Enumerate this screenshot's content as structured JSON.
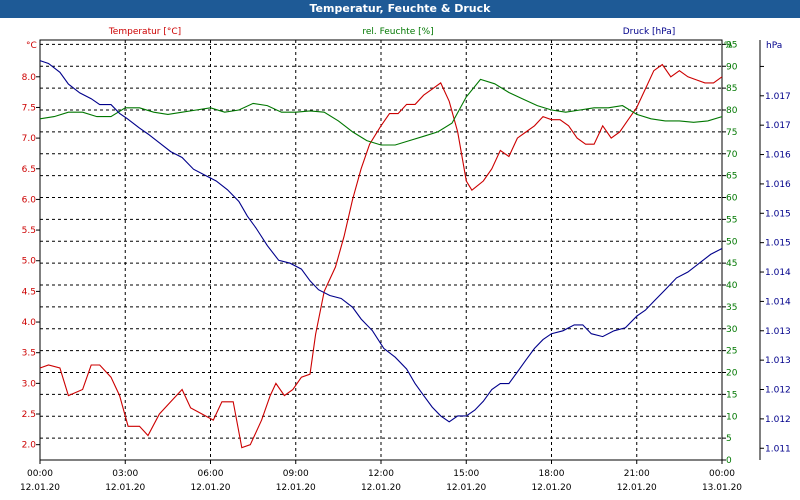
{
  "chart_data": {
    "type": "line",
    "title": "Temperatur, Feuchte & Druck",
    "axes": {
      "left": {
        "label": "Temperatur [°C]",
        "unit": "°C",
        "min": 1.75,
        "max": 8.6,
        "ticks": [
          2.0,
          2.5,
          3.0,
          3.5,
          4.0,
          4.5,
          5.0,
          5.5,
          6.0,
          6.5,
          7.0,
          7.5,
          8.0
        ],
        "color": "#cc0000"
      },
      "right1": {
        "label": "rel. Feuchte [%]",
        "unit": "%",
        "min": 0,
        "max": 96,
        "ticks": [
          0,
          5,
          10,
          15,
          20,
          25,
          30,
          35,
          40,
          45,
          50,
          55,
          60,
          65,
          70,
          75,
          80,
          85,
          90,
          95
        ],
        "color": "#007700"
      },
      "right2": {
        "label": "Druck [hPa]",
        "unit": "hPa",
        "min": 1010.8,
        "max": 1017.95,
        "ticks": [
          1011.0,
          1011.5,
          1012.0,
          1012.5,
          1013.0,
          1013.5,
          1014.0,
          1014.5,
          1015.0,
          1015.5,
          1016.0,
          1016.5,
          1017.0,
          1017.5
        ],
        "tick_labels": [
          "1.011",
          "1.012",
          "1.012",
          "1.013",
          "1.013",
          "1.014",
          "1.014",
          "1.015",
          "1.015",
          "1.016",
          "1.016",
          "1.017",
          "1.017",
          ""
        ],
        "color": "#00008b"
      }
    },
    "x_ticks": [
      {
        "hour": 0,
        "time": "00:00",
        "date": "12.01.20"
      },
      {
        "hour": 3,
        "time": "03:00",
        "date": "12.01.20"
      },
      {
        "hour": 6,
        "time": "06:00",
        "date": "12.01.20"
      },
      {
        "hour": 9,
        "time": "09:00",
        "date": "12.01.20"
      },
      {
        "hour": 12,
        "time": "12:00",
        "date": "12.01.20"
      },
      {
        "hour": 15,
        "time": "15:00",
        "date": "12.01.20"
      },
      {
        "hour": 18,
        "time": "18:00",
        "date": "12.01.20"
      },
      {
        "hour": 21,
        "time": "21:00",
        "date": "12.01.20"
      },
      {
        "hour": 24,
        "time": "00:00",
        "date": "13.01.20"
      }
    ],
    "grid": true,
    "series": [
      {
        "name": "Temperatur [°C]",
        "axis": "left",
        "color": "#cc0000",
        "points": [
          [
            0,
            3.25
          ],
          [
            0.3,
            3.3
          ],
          [
            0.7,
            3.25
          ],
          [
            1.0,
            2.8
          ],
          [
            1.5,
            2.9
          ],
          [
            1.8,
            3.3
          ],
          [
            2.1,
            3.3
          ],
          [
            2.5,
            3.1
          ],
          [
            2.8,
            2.8
          ],
          [
            3.1,
            2.3
          ],
          [
            3.5,
            2.3
          ],
          [
            3.8,
            2.15
          ],
          [
            4.2,
            2.5
          ],
          [
            4.6,
            2.7
          ],
          [
            5.0,
            2.9
          ],
          [
            5.3,
            2.6
          ],
          [
            5.7,
            2.5
          ],
          [
            6.1,
            2.4
          ],
          [
            6.4,
            2.7
          ],
          [
            6.8,
            2.7
          ],
          [
            7.1,
            1.95
          ],
          [
            7.4,
            2.0
          ],
          [
            7.8,
            2.4
          ],
          [
            8.1,
            2.8
          ],
          [
            8.3,
            3.0
          ],
          [
            8.6,
            2.8
          ],
          [
            8.9,
            2.9
          ],
          [
            9.2,
            3.1
          ],
          [
            9.5,
            3.15
          ],
          [
            9.7,
            3.8
          ],
          [
            10.0,
            4.5
          ],
          [
            10.4,
            4.9
          ],
          [
            10.7,
            5.4
          ],
          [
            11.0,
            6.0
          ],
          [
            11.3,
            6.5
          ],
          [
            11.6,
            6.9
          ],
          [
            12.0,
            7.2
          ],
          [
            12.3,
            7.4
          ],
          [
            12.6,
            7.4
          ],
          [
            12.9,
            7.55
          ],
          [
            13.2,
            7.55
          ],
          [
            13.5,
            7.7
          ],
          [
            13.8,
            7.8
          ],
          [
            14.1,
            7.9
          ],
          [
            14.4,
            7.6
          ],
          [
            14.7,
            7.1
          ],
          [
            15.0,
            6.3
          ],
          [
            15.2,
            6.15
          ],
          [
            15.6,
            6.3
          ],
          [
            15.9,
            6.5
          ],
          [
            16.2,
            6.8
          ],
          [
            16.5,
            6.7
          ],
          [
            16.8,
            7.0
          ],
          [
            17.1,
            7.1
          ],
          [
            17.4,
            7.2
          ],
          [
            17.7,
            7.35
          ],
          [
            18.0,
            7.3
          ],
          [
            18.3,
            7.3
          ],
          [
            18.6,
            7.2
          ],
          [
            18.9,
            7.0
          ],
          [
            19.2,
            6.9
          ],
          [
            19.5,
            6.9
          ],
          [
            19.8,
            7.2
          ],
          [
            20.1,
            7.0
          ],
          [
            20.4,
            7.1
          ],
          [
            20.7,
            7.3
          ],
          [
            21.0,
            7.5
          ],
          [
            21.3,
            7.8
          ],
          [
            21.6,
            8.1
          ],
          [
            21.9,
            8.2
          ],
          [
            22.2,
            8.0
          ],
          [
            22.5,
            8.1
          ],
          [
            22.8,
            8.0
          ],
          [
            23.1,
            7.95
          ],
          [
            23.4,
            7.9
          ],
          [
            23.7,
            7.9
          ],
          [
            24.0,
            8.0
          ]
        ]
      },
      {
        "name": "rel. Feuchte [%]",
        "axis": "right1",
        "color": "#007700",
        "points": [
          [
            0,
            78
          ],
          [
            0.5,
            78.5
          ],
          [
            1.0,
            79.5
          ],
          [
            1.5,
            79.5
          ],
          [
            2.0,
            78.5
          ],
          [
            2.5,
            78.5
          ],
          [
            3.0,
            80.5
          ],
          [
            3.5,
            80.5
          ],
          [
            4.0,
            79.5
          ],
          [
            4.5,
            79
          ],
          [
            5.0,
            79.5
          ],
          [
            5.5,
            80
          ],
          [
            6.0,
            80.5
          ],
          [
            6.5,
            79.5
          ],
          [
            7.0,
            80
          ],
          [
            7.5,
            81.5
          ],
          [
            8.0,
            81
          ],
          [
            8.5,
            79.5
          ],
          [
            9.0,
            79.5
          ],
          [
            9.5,
            79.8
          ],
          [
            10.0,
            79.5
          ],
          [
            10.5,
            77.5
          ],
          [
            11.0,
            75
          ],
          [
            11.5,
            73
          ],
          [
            12.0,
            72
          ],
          [
            12.5,
            72
          ],
          [
            13.0,
            73
          ],
          [
            13.5,
            74
          ],
          [
            14.0,
            75
          ],
          [
            14.5,
            77
          ],
          [
            15.0,
            83
          ],
          [
            15.5,
            87
          ],
          [
            16.0,
            86
          ],
          [
            16.5,
            84
          ],
          [
            17.0,
            82.5
          ],
          [
            17.5,
            81
          ],
          [
            18.0,
            80
          ],
          [
            18.5,
            79.5
          ],
          [
            19.0,
            80
          ],
          [
            19.5,
            80.5
          ],
          [
            20.0,
            80.5
          ],
          [
            20.5,
            81
          ],
          [
            21.0,
            79
          ],
          [
            21.5,
            78
          ],
          [
            22.0,
            77.5
          ],
          [
            22.5,
            77.5
          ],
          [
            23.0,
            77.2
          ],
          [
            23.5,
            77.5
          ],
          [
            24.0,
            78.5
          ]
        ]
      },
      {
        "name": "Druck [hPa]",
        "axis": "right2",
        "color": "#00008b",
        "points": [
          [
            0,
            1017.6
          ],
          [
            0.3,
            1017.55
          ],
          [
            0.7,
            1017.4
          ],
          [
            1.0,
            1017.2
          ],
          [
            1.4,
            1017.05
          ],
          [
            1.8,
            1016.95
          ],
          [
            2.1,
            1016.85
          ],
          [
            2.5,
            1016.85
          ],
          [
            2.8,
            1016.7
          ],
          [
            3.1,
            1016.6
          ],
          [
            3.5,
            1016.45
          ],
          [
            3.8,
            1016.35
          ],
          [
            4.2,
            1016.2
          ],
          [
            4.6,
            1016.05
          ],
          [
            5.0,
            1015.95
          ],
          [
            5.4,
            1015.75
          ],
          [
            5.8,
            1015.65
          ],
          [
            6.2,
            1015.55
          ],
          [
            6.6,
            1015.4
          ],
          [
            7.0,
            1015.2
          ],
          [
            7.3,
            1014.95
          ],
          [
            7.6,
            1014.75
          ],
          [
            8.0,
            1014.45
          ],
          [
            8.4,
            1014.2
          ],
          [
            8.8,
            1014.15
          ],
          [
            9.2,
            1014.05
          ],
          [
            9.5,
            1013.85
          ],
          [
            9.8,
            1013.7
          ],
          [
            10.2,
            1013.6
          ],
          [
            10.6,
            1013.55
          ],
          [
            11.0,
            1013.4
          ],
          [
            11.3,
            1013.2
          ],
          [
            11.7,
            1013.0
          ],
          [
            12.1,
            1012.7
          ],
          [
            12.5,
            1012.55
          ],
          [
            12.9,
            1012.35
          ],
          [
            13.2,
            1012.1
          ],
          [
            13.5,
            1011.9
          ],
          [
            13.8,
            1011.7
          ],
          [
            14.1,
            1011.55
          ],
          [
            14.4,
            1011.45
          ],
          [
            14.7,
            1011.55
          ],
          [
            15.0,
            1011.55
          ],
          [
            15.3,
            1011.65
          ],
          [
            15.6,
            1011.8
          ],
          [
            15.9,
            1012.0
          ],
          [
            16.2,
            1012.1
          ],
          [
            16.5,
            1012.1
          ],
          [
            16.8,
            1012.3
          ],
          [
            17.1,
            1012.5
          ],
          [
            17.4,
            1012.7
          ],
          [
            17.7,
            1012.85
          ],
          [
            18.0,
            1012.95
          ],
          [
            18.4,
            1013.0
          ],
          [
            18.8,
            1013.1
          ],
          [
            19.1,
            1013.1
          ],
          [
            19.4,
            1012.95
          ],
          [
            19.8,
            1012.9
          ],
          [
            20.2,
            1013.0
          ],
          [
            20.6,
            1013.05
          ],
          [
            21.0,
            1013.25
          ],
          [
            21.3,
            1013.35
          ],
          [
            21.6,
            1013.5
          ],
          [
            22.0,
            1013.7
          ],
          [
            22.4,
            1013.9
          ],
          [
            22.8,
            1014.0
          ],
          [
            23.2,
            1014.15
          ],
          [
            23.6,
            1014.3
          ],
          [
            24.0,
            1014.4
          ]
        ]
      }
    ]
  }
}
